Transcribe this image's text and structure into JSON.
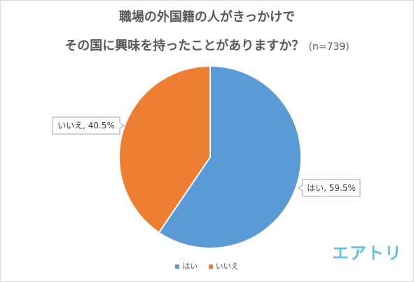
{
  "chart_data": {
    "type": "pie",
    "title_line1": "職場の外国籍の人がきっかけで",
    "title_line2": "その国に興味を持ったことがありますか？",
    "sample_note": "(n=739)",
    "slices": [
      {
        "label": "はい",
        "value": 59.5,
        "data_label": "はい, 59.5%",
        "color": "#5b9bd5"
      },
      {
        "label": "いいえ",
        "value": 40.5,
        "data_label": "いいえ, 40.5%",
        "color": "#ed7d31"
      }
    ],
    "legend": {
      "placement": "bottom",
      "entries": [
        "はい",
        "いいえ"
      ]
    }
  },
  "brand": {
    "logo_text": "エアトリ",
    "logo_color": "#5fc3e8"
  }
}
